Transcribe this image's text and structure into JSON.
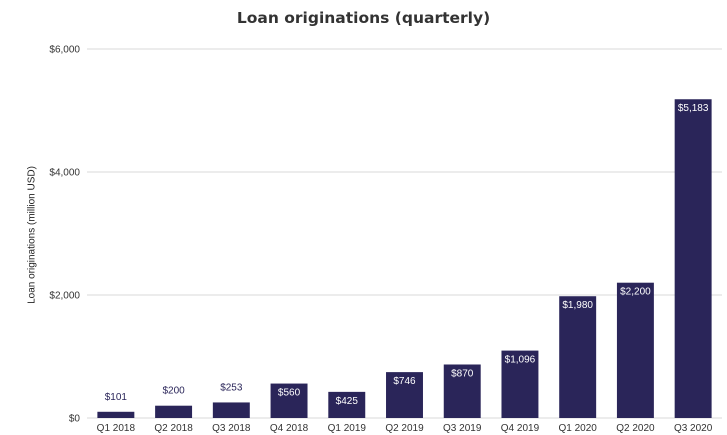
{
  "chart_data": {
    "type": "bar",
    "title": "Loan originations (quarterly)",
    "xlabel": "",
    "ylabel": "Loan originations (million USD)",
    "categories": [
      "Q1 2018",
      "Q2 2018",
      "Q3 2018",
      "Q4 2018",
      "Q1 2019",
      "Q2 2019",
      "Q3 2019",
      "Q4 2019",
      "Q1 2020",
      "Q2 2020",
      "Q3 2020"
    ],
    "values": [
      101,
      200,
      253,
      560,
      425,
      746,
      870,
      1096,
      1980,
      2200,
      5183
    ],
    "value_labels": [
      "$101",
      "$200",
      "$253",
      "$560",
      "$425",
      "$746",
      "$870",
      "$1,096",
      "$1,980",
      "$2,200",
      "$5,183"
    ],
    "ylim": [
      0,
      6000
    ],
    "yticks": [
      0,
      2000,
      4000,
      6000
    ],
    "ytick_labels": [
      "$0",
      "$2,000",
      "$4,000",
      "$6,000"
    ],
    "grid": true,
    "legend": "none",
    "colors": {
      "bar": "#2a2559",
      "bar_label_inside": "#ffffff",
      "bar_label_outside": "#2a2559",
      "grid": "#d9d9d9",
      "axis_text": "#333333"
    }
  }
}
